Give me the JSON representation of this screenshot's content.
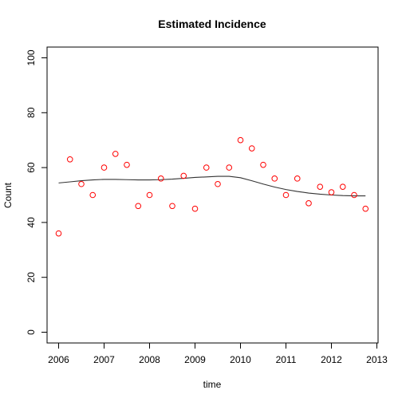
{
  "chart_data": {
    "type": "scatter",
    "title": "Estimated Incidence",
    "xlabel": "time",
    "ylabel": "Count",
    "xlim": [
      2006,
      2013
    ],
    "ylim": [
      0,
      100
    ],
    "x_ticks": [
      2006,
      2007,
      2008,
      2009,
      2010,
      2011,
      2012,
      2013
    ],
    "y_ticks": [
      0,
      20,
      40,
      60,
      80,
      100
    ],
    "grid": false,
    "point_color": "#ff0000",
    "line_color": "#333333",
    "series": [
      {
        "type": "scatter",
        "x": [
          2006.0,
          2006.25,
          2006.5,
          2006.75,
          2007.0,
          2007.25,
          2007.5,
          2007.75,
          2008.0,
          2008.25,
          2008.5,
          2008.75,
          2009.0,
          2009.25,
          2009.5,
          2009.75,
          2010.0,
          2010.25,
          2010.5,
          2010.75,
          2011.0,
          2011.25,
          2011.5,
          2011.75,
          2012.0,
          2012.25,
          2012.5,
          2012.75
        ],
        "y": [
          36,
          63,
          54,
          50,
          60,
          65,
          61,
          46,
          50,
          56,
          46,
          57,
          45,
          60,
          54,
          60,
          70,
          67,
          61,
          56,
          50,
          56,
          47,
          53,
          51,
          53,
          50,
          45
        ]
      },
      {
        "type": "line",
        "x": [
          2006.0,
          2006.25,
          2006.5,
          2006.75,
          2007.0,
          2007.25,
          2007.5,
          2007.75,
          2008.0,
          2008.25,
          2008.5,
          2008.75,
          2009.0,
          2009.25,
          2009.5,
          2009.75,
          2010.0,
          2010.25,
          2010.5,
          2010.75,
          2011.0,
          2011.25,
          2011.5,
          2011.75,
          2012.0,
          2012.25,
          2012.5,
          2012.75
        ],
        "y": [
          54.4,
          54.8,
          55.2,
          55.5,
          55.7,
          55.7,
          55.6,
          55.5,
          55.5,
          55.6,
          55.8,
          56.1,
          56.4,
          56.6,
          56.8,
          56.8,
          56.3,
          55.2,
          54.0,
          52.9,
          52.0,
          51.3,
          50.7,
          50.3,
          50.0,
          49.8,
          49.7,
          49.7
        ]
      }
    ]
  }
}
